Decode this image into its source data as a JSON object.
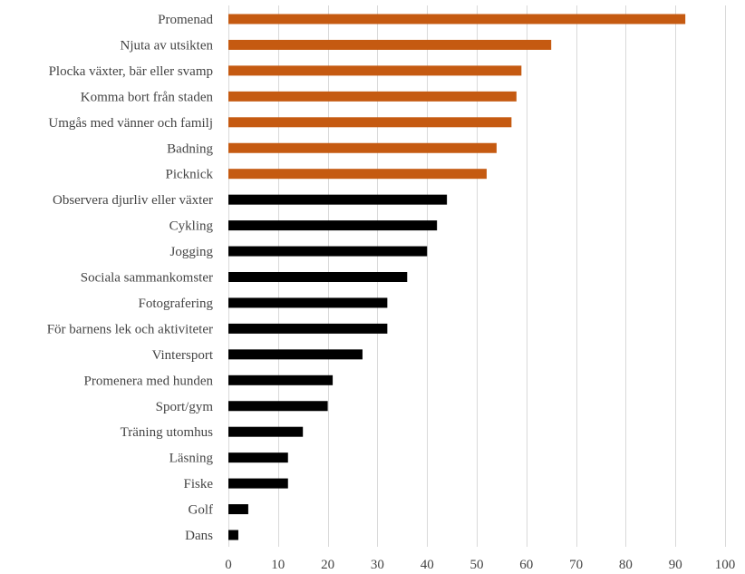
{
  "chart_data": {
    "type": "bar",
    "orientation": "horizontal",
    "title": "",
    "xlabel": "",
    "ylabel": "",
    "xlim": [
      0,
      100
    ],
    "xticks": [
      0,
      10,
      20,
      30,
      40,
      50,
      60,
      70,
      80,
      90,
      100
    ],
    "grid": "vertical",
    "legend": "none",
    "colors": {
      "highlight": "#c55a11",
      "default": "#000000"
    },
    "categories": [
      "Promenad",
      "Njuta av utsikten",
      "Plocka växter, bär eller svamp",
      "Komma bort från staden",
      "Umgås med vänner och familj",
      "Badning",
      "Picknick",
      "Observera djurliv eller växter",
      "Cykling",
      "Jogging",
      "Sociala sammankomster",
      "Fotografering",
      "För barnens lek och aktiviteter",
      "Vintersport",
      "Promenera med hunden",
      "Sport/gym",
      "Träning utomhus",
      "Läsning",
      "Fiske",
      "Golf",
      "Dans"
    ],
    "values": [
      92,
      65,
      59,
      58,
      57,
      54,
      52,
      44,
      42,
      40,
      36,
      32,
      32,
      27,
      21,
      20,
      15,
      12,
      12,
      4,
      2
    ],
    "highlighted_count": 7
  }
}
